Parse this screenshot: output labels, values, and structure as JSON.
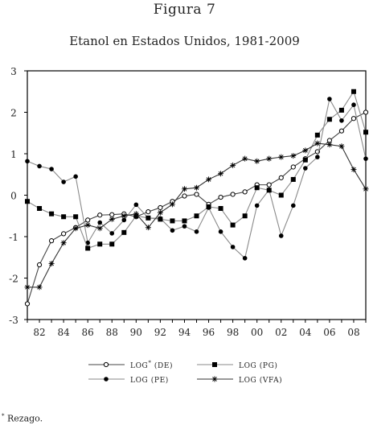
{
  "figure": {
    "label": "Figura 7",
    "footnote_mark": "*",
    "footnote_text": "Rezago."
  },
  "chart_data": {
    "type": "line",
    "title": "Etanol en Estados Unidos, 1981-2009",
    "xlabel": "",
    "ylabel": "",
    "x": [
      1981,
      1982,
      1983,
      1984,
      1985,
      1986,
      1987,
      1988,
      1989,
      1990,
      1991,
      1992,
      1993,
      1994,
      1995,
      1996,
      1997,
      1998,
      1999,
      2000,
      2001,
      2002,
      2003,
      2004,
      2005,
      2006,
      2007,
      2008,
      2009
    ],
    "xlim": [
      1981,
      2009
    ],
    "ylim": [
      -3,
      3
    ],
    "y_ticks": [
      -3,
      -2,
      -1,
      0,
      1,
      2,
      3
    ],
    "x_ticks": [
      1982,
      1984,
      1986,
      1988,
      1990,
      1992,
      1994,
      1996,
      1998,
      2000,
      2002,
      2004,
      2006,
      2008
    ],
    "x_tick_labels": [
      "82",
      "84",
      "86",
      "88",
      "90",
      "92",
      "94",
      "96",
      "98",
      "00",
      "02",
      "04",
      "06",
      "08"
    ],
    "grid": false,
    "legend_position": "bottom",
    "series": [
      {
        "name": "LOG* (DE)",
        "marker": "open-circle",
        "color": "#000000",
        "values": [
          -2.62,
          -1.68,
          -1.1,
          -0.93,
          -0.78,
          -0.6,
          -0.48,
          -0.47,
          -0.45,
          -0.52,
          -0.4,
          -0.3,
          -0.15,
          -0.02,
          0.02,
          -0.22,
          -0.05,
          0.02,
          0.08,
          0.25,
          0.25,
          0.42,
          0.68,
          0.88,
          1.05,
          1.32,
          1.55,
          1.85,
          2.0
        ]
      },
      {
        "name": "LOG (PE)",
        "marker": "filled-circle",
        "color": "#000000",
        "values": [
          0.82,
          0.7,
          0.63,
          0.32,
          0.45,
          -1.15,
          -0.66,
          -0.92,
          -0.6,
          -0.23,
          -0.55,
          -0.56,
          -0.85,
          -0.75,
          -0.88,
          -0.3,
          -0.88,
          -1.25,
          -1.52,
          -0.25,
          0.13,
          -0.98,
          -0.25,
          0.65,
          0.92,
          2.32,
          1.8,
          2.18,
          0.88
        ]
      },
      {
        "name": "LOG (PG)",
        "marker": "filled-square",
        "color": "#000000",
        "values": [
          -0.15,
          -0.32,
          -0.45,
          -0.52,
          -0.52,
          -1.28,
          -1.18,
          -1.18,
          -0.9,
          -0.5,
          -0.55,
          -0.58,
          -0.62,
          -0.62,
          -0.5,
          -0.28,
          -0.32,
          -0.72,
          -0.5,
          0.18,
          0.12,
          0.0,
          0.38,
          0.85,
          1.45,
          1.83,
          2.05,
          2.5,
          1.52
        ]
      },
      {
        "name": "LOG (VFA)",
        "marker": "star",
        "color": "#000000",
        "values": [
          -2.22,
          -2.22,
          -1.65,
          -1.15,
          -0.8,
          -0.72,
          -0.8,
          -0.58,
          -0.5,
          -0.45,
          -0.78,
          -0.42,
          -0.22,
          0.15,
          0.18,
          0.38,
          0.52,
          0.72,
          0.88,
          0.82,
          0.88,
          0.92,
          0.95,
          1.08,
          1.25,
          1.22,
          1.18,
          0.62,
          0.15
        ]
      }
    ]
  }
}
